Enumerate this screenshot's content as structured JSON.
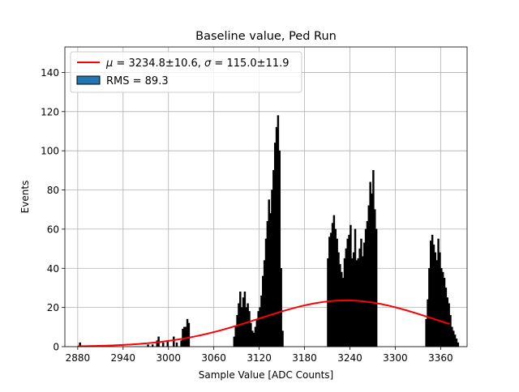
{
  "chart_data": {
    "type": "bar",
    "title": "Baseline value, Ped Run",
    "xlabel": "Sample Value [ADC Counts]",
    "ylabel": "Events",
    "xlim": [
      2863,
      3395
    ],
    "ylim": [
      0,
      153
    ],
    "xticks": [
      2880,
      2940,
      3000,
      3060,
      3120,
      3180,
      3240,
      3300,
      3360
    ],
    "yticks": [
      0,
      20,
      40,
      60,
      80,
      100,
      120,
      140
    ],
    "grid": true,
    "legend_position": "top-left",
    "fit": {
      "name": "$\\mu = 3234.8\\pm10.6$, $\\sigma = 115.0\\pm11.9$",
      "label_parts": [
        "μ",
        " = 3234.8±10.6, ",
        "σ",
        " = 115.0±11.9"
      ],
      "mu": 3234.8,
      "sigma": 115.0,
      "amplitude": 23.6,
      "x_range": [
        2880,
        3373
      ],
      "color": "#ff0000"
    },
    "histogram": {
      "name": "RMS = 89.3",
      "bin_width": 2,
      "color": "#000000",
      "legend_patch_color": "#1f77b4",
      "bins": [
        [
          2882,
          2
        ],
        [
          2972,
          1
        ],
        [
          2978,
          1
        ],
        [
          2984,
          3
        ],
        [
          2986,
          5
        ],
        [
          2992,
          2
        ],
        [
          2998,
          3
        ],
        [
          3006,
          5
        ],
        [
          3010,
          2
        ],
        [
          3016,
          3
        ],
        [
          3018,
          9
        ],
        [
          3020,
          10
        ],
        [
          3022,
          10
        ],
        [
          3024,
          14
        ],
        [
          3026,
          12
        ],
        [
          3086,
          5
        ],
        [
          3088,
          10
        ],
        [
          3090,
          16
        ],
        [
          3092,
          22
        ],
        [
          3094,
          28
        ],
        [
          3096,
          20
        ],
        [
          3098,
          25
        ],
        [
          3100,
          28
        ],
        [
          3102,
          20
        ],
        [
          3104,
          22
        ],
        [
          3106,
          18
        ],
        [
          3108,
          12
        ],
        [
          3110,
          8
        ],
        [
          3112,
          7
        ],
        [
          3114,
          10
        ],
        [
          3116,
          14
        ],
        [
          3118,
          18
        ],
        [
          3120,
          20
        ],
        [
          3122,
          26
        ],
        [
          3124,
          36
        ],
        [
          3126,
          44
        ],
        [
          3128,
          55
        ],
        [
          3130,
          64
        ],
        [
          3132,
          75
        ],
        [
          3134,
          68
        ],
        [
          3136,
          80
        ],
        [
          3138,
          90
        ],
        [
          3140,
          104
        ],
        [
          3142,
          112
        ],
        [
          3144,
          118
        ],
        [
          3146,
          100
        ],
        [
          3148,
          40
        ],
        [
          3150,
          8
        ],
        [
          3210,
          45
        ],
        [
          3212,
          56
        ],
        [
          3214,
          58
        ],
        [
          3216,
          63
        ],
        [
          3218,
          67
        ],
        [
          3220,
          60
        ],
        [
          3222,
          55
        ],
        [
          3224,
          48
        ],
        [
          3226,
          42
        ],
        [
          3228,
          38
        ],
        [
          3230,
          35
        ],
        [
          3232,
          45
        ],
        [
          3234,
          50
        ],
        [
          3236,
          55
        ],
        [
          3238,
          57
        ],
        [
          3240,
          62
        ],
        [
          3242,
          45
        ],
        [
          3244,
          48
        ],
        [
          3246,
          60
        ],
        [
          3248,
          44
        ],
        [
          3250,
          45
        ],
        [
          3252,
          50
        ],
        [
          3254,
          55
        ],
        [
          3256,
          46
        ],
        [
          3258,
          53
        ],
        [
          3260,
          60
        ],
        [
          3262,
          64
        ],
        [
          3264,
          72
        ],
        [
          3266,
          84
        ],
        [
          3268,
          78
        ],
        [
          3270,
          90
        ],
        [
          3272,
          70
        ],
        [
          3274,
          60
        ],
        [
          3340,
          14
        ],
        [
          3342,
          24
        ],
        [
          3344,
          40
        ],
        [
          3346,
          54
        ],
        [
          3348,
          57
        ],
        [
          3350,
          52
        ],
        [
          3352,
          48
        ],
        [
          3354,
          44
        ],
        [
          3356,
          55
        ],
        [
          3358,
          48
        ],
        [
          3360,
          40
        ],
        [
          3362,
          38
        ],
        [
          3364,
          35
        ],
        [
          3366,
          30
        ],
        [
          3368,
          25
        ],
        [
          3370,
          22
        ],
        [
          3372,
          16
        ],
        [
          3374,
          10
        ],
        [
          3376,
          8
        ],
        [
          3378,
          6
        ],
        [
          3380,
          4
        ],
        [
          3382,
          2
        ]
      ]
    }
  }
}
